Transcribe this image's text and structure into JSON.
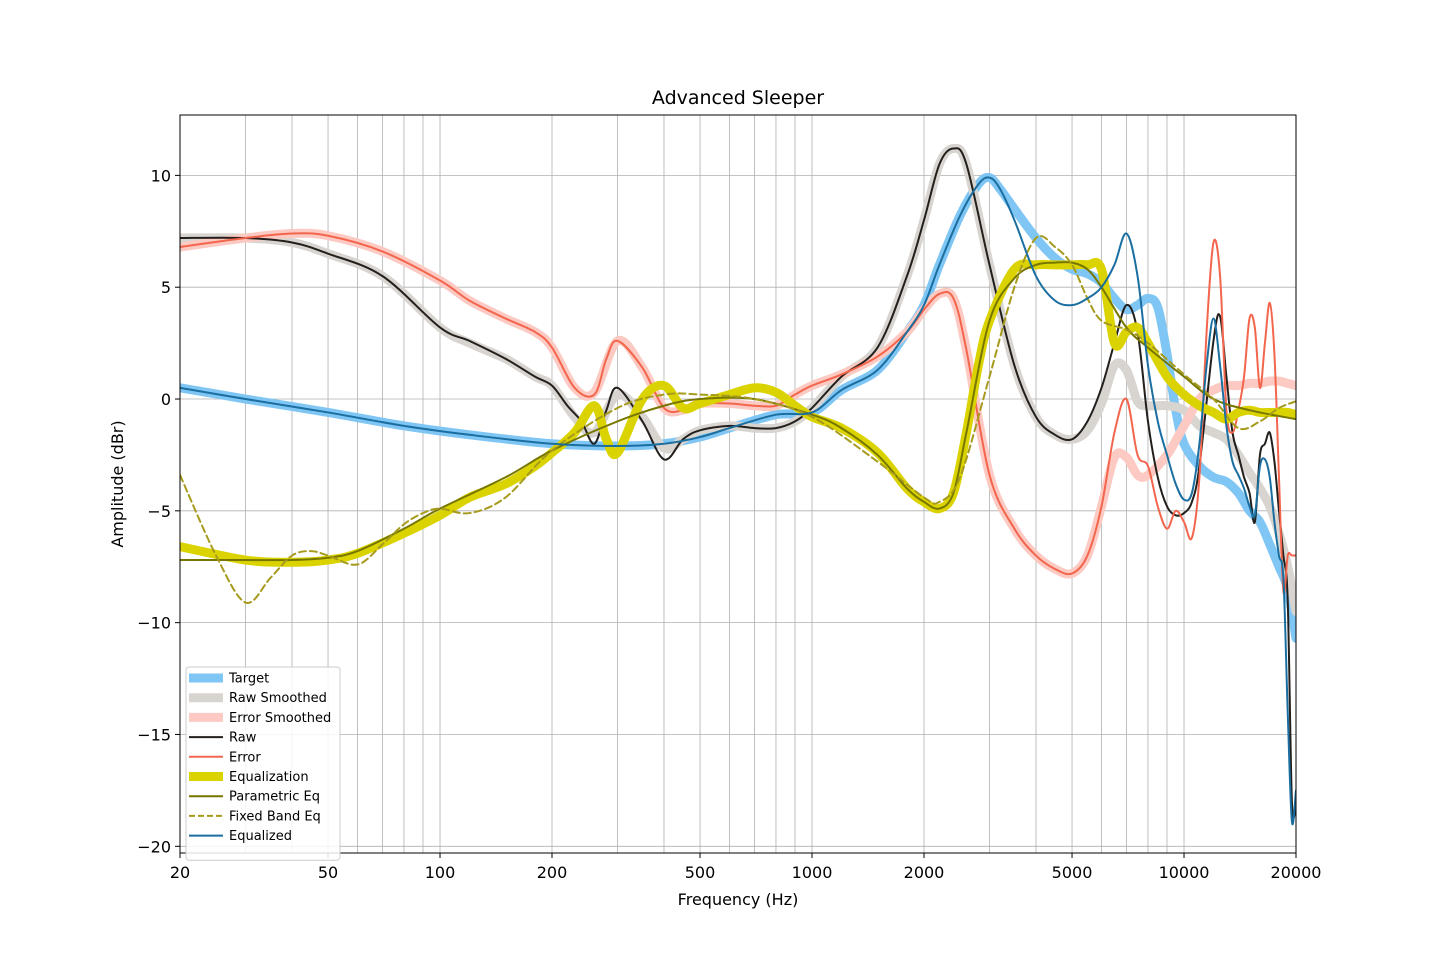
{
  "chart_data": {
    "type": "line",
    "title": "Advanced Sleeper",
    "xlabel": "Frequency (Hz)",
    "ylabel": "Amplitude (dBr)",
    "xscale": "log",
    "xlim": [
      20,
      20000
    ],
    "ylim": [
      -20.3,
      12.7
    ],
    "xticks": [
      20,
      50,
      100,
      200,
      500,
      1000,
      2000,
      5000,
      10000,
      20000
    ],
    "xtick_labels": [
      "20",
      "50",
      "100",
      "200",
      "500",
      "1000",
      "2000",
      "5000",
      "10000",
      "20000"
    ],
    "yticks": [
      10,
      5,
      0,
      -5,
      -10,
      -15,
      -20
    ],
    "ytick_labels": [
      "10",
      "5",
      "0",
      "−5",
      "−10",
      "−15",
      "−20"
    ],
    "grid": true,
    "legend_position": "lower-left",
    "series": [
      {
        "name": "Target",
        "color": "#7fc6f5",
        "style": "thick",
        "x": [
          20,
          30,
          50,
          80,
          120,
          200,
          300,
          400,
          500,
          600,
          800,
          1000,
          1200,
          1500,
          1800,
          2000,
          2200,
          2500,
          2800,
          3000,
          3200,
          3500,
          4000,
          4500,
          5000,
          5500,
          6000,
          6500,
          7000,
          7500,
          8000,
          8500,
          9000,
          9500,
          10000,
          11000,
          12000,
          13000,
          14000,
          15000,
          16000,
          17000,
          18000,
          19000,
          20000
        ],
        "y": [
          0.5,
          0,
          -0.6,
          -1.2,
          -1.6,
          -2.0,
          -2.1,
          -2.0,
          -1.7,
          -1.3,
          -0.7,
          -0.6,
          0.4,
          1.3,
          3.0,
          4.2,
          6.0,
          8.2,
          9.6,
          9.9,
          9.4,
          8.5,
          7.2,
          6.3,
          5.8,
          5.6,
          5.2,
          4.5,
          4.0,
          4.2,
          4.5,
          4.1,
          2.0,
          -0.5,
          -2.0,
          -3.0,
          -3.5,
          -3.7,
          -4.2,
          -5.0,
          -5.5,
          -6.5,
          -7.5,
          -8.5,
          -10.7
        ]
      },
      {
        "name": "Raw Smoothed",
        "color": "#d8d4d0",
        "style": "thick",
        "x": [
          20,
          30,
          40,
          50,
          70,
          100,
          120,
          150,
          180,
          200,
          230,
          260,
          300,
          350,
          400,
          450,
          500,
          600,
          700,
          800,
          900,
          1000,
          1200,
          1500,
          1800,
          2000,
          2200,
          2400,
          2600,
          3000,
          3500,
          4000,
          4500,
          5000,
          5500,
          6000,
          6500,
          7000,
          7500,
          8000,
          9000,
          10000,
          11000,
          12000,
          13000,
          14000,
          15000,
          16000,
          17000,
          18000,
          19000,
          20000
        ],
        "y": [
          7.2,
          7.2,
          7.0,
          6.5,
          5.5,
          3.2,
          2.5,
          1.8,
          1.0,
          0.6,
          -0.8,
          -1.5,
          0.2,
          -0.8,
          -2.2,
          -1.8,
          -1.4,
          -1.2,
          -1.3,
          -1.3,
          -1.0,
          -0.4,
          1.0,
          2.3,
          5.5,
          8.0,
          10.5,
          11.2,
          10.5,
          6.0,
          1.5,
          -0.8,
          -1.6,
          -1.8,
          -1.4,
          -0.2,
          1.5,
          1.3,
          -0.1,
          -0.3,
          -0.3,
          -0.5,
          -1.2,
          -1.5,
          -1.8,
          -2.5,
          -3.3,
          -4.0,
          -4.8,
          -6.0,
          -7.5,
          -9.5
        ]
      },
      {
        "name": "Error Smoothed",
        "color": "#fccac2",
        "style": "thick",
        "x": [
          20,
          30,
          40,
          50,
          70,
          100,
          120,
          150,
          180,
          200,
          230,
          260,
          300,
          350,
          400,
          450,
          500,
          600,
          700,
          800,
          900,
          1000,
          1200,
          1500,
          1800,
          2000,
          2200,
          2400,
          2600,
          3000,
          3500,
          4000,
          4500,
          5000,
          5500,
          6000,
          6500,
          7000,
          7500,
          8000,
          9000,
          10000,
          11000,
          12000,
          13000,
          14000,
          15000,
          16000,
          17000,
          18000,
          19000,
          20000
        ],
        "y": [
          6.8,
          7.2,
          7.4,
          7.3,
          6.6,
          5.3,
          4.4,
          3.6,
          3.0,
          2.3,
          0.5,
          0.3,
          2.6,
          1.4,
          -0.4,
          -0.5,
          -0.2,
          -0.2,
          -0.3,
          -0.3,
          0.2,
          0.6,
          1.1,
          1.9,
          3.0,
          4.0,
          4.7,
          4.5,
          2.2,
          -3.4,
          -5.8,
          -7.0,
          -7.6,
          -7.8,
          -7.0,
          -4.8,
          -2.6,
          -2.6,
          -3.4,
          -3.4,
          -2.5,
          -1.2,
          0.0,
          0.4,
          0.6,
          0.6,
          0.7,
          0.7,
          0.8,
          0.8,
          0.7,
          0.6
        ]
      },
      {
        "name": "Raw",
        "color": "#231f1c",
        "style": "line",
        "x": [
          20,
          30,
          40,
          50,
          70,
          100,
          120,
          150,
          180,
          200,
          220,
          240,
          260,
          280,
          300,
          350,
          400,
          450,
          500,
          600,
          700,
          800,
          900,
          1000,
          1200,
          1500,
          1800,
          2000,
          2200,
          2400,
          2600,
          3000,
          3500,
          4000,
          4500,
          5000,
          5500,
          6000,
          6500,
          7000,
          7500,
          8000,
          8500,
          9000,
          9500,
          10000,
          10500,
          11000,
          12000,
          12500,
          13000,
          13500,
          14000,
          14500,
          15000,
          15500,
          16000,
          16500,
          17000,
          17500,
          18000,
          18500,
          19000,
          19500,
          20000
        ],
        "y": [
          7.2,
          7.2,
          7.0,
          6.5,
          5.5,
          3.2,
          2.6,
          1.8,
          1.0,
          0.6,
          -0.3,
          -1.0,
          -2.0,
          -0.5,
          0.5,
          -1.0,
          -2.7,
          -1.8,
          -1.4,
          -1.2,
          -1.3,
          -1.3,
          -1.0,
          -0.4,
          1.0,
          2.3,
          5.5,
          8.0,
          10.5,
          11.2,
          10.5,
          6.0,
          1.5,
          -0.8,
          -1.6,
          -1.8,
          -1.0,
          0.5,
          2.5,
          4.2,
          3.0,
          -1.0,
          -3.5,
          -4.8,
          -5.2,
          -5.1,
          -4.6,
          -3.0,
          2.6,
          3.7,
          1.0,
          -1.5,
          -2.5,
          -3.5,
          -4.2,
          -5.5,
          -2.5,
          -2.0,
          -1.5,
          -2.8,
          -5.0,
          -7.0,
          -9.0,
          -18.0,
          -18.2
        ]
      },
      {
        "name": "Error",
        "color": "#f3664d",
        "style": "line",
        "x": [
          20,
          30,
          40,
          50,
          70,
          100,
          120,
          150,
          180,
          200,
          230,
          260,
          280,
          300,
          350,
          400,
          450,
          500,
          600,
          700,
          800,
          900,
          1000,
          1200,
          1500,
          1800,
          2000,
          2200,
          2400,
          2600,
          3000,
          3500,
          4000,
          4500,
          5000,
          5500,
          6000,
          6500,
          7000,
          7500,
          8000,
          8500,
          9000,
          9500,
          10000,
          10500,
          11000,
          11500,
          12000,
          12500,
          13000,
          13500,
          14000,
          14500,
          15000,
          15500,
          16000,
          16500,
          17000,
          17500,
          18000,
          18500,
          19000,
          19500,
          20000
        ],
        "y": [
          6.8,
          7.2,
          7.4,
          7.3,
          6.6,
          5.3,
          4.4,
          3.6,
          3.0,
          2.3,
          0.5,
          0.2,
          1.8,
          2.6,
          1.4,
          -0.4,
          -0.5,
          -0.2,
          -0.2,
          -0.3,
          -0.3,
          0.2,
          0.6,
          1.1,
          1.9,
          3.0,
          4.0,
          4.7,
          4.5,
          2.2,
          -3.4,
          -5.8,
          -7.0,
          -7.6,
          -7.8,
          -7.0,
          -4.8,
          -1.5,
          0.0,
          -2.5,
          -3.0,
          -4.8,
          -5.8,
          -5.0,
          -5.5,
          -6.2,
          -3.5,
          3.0,
          7.0,
          5.5,
          -0.5,
          -1.5,
          -0.5,
          1.0,
          3.6,
          3.2,
          0.5,
          2.5,
          4.3,
          2.0,
          -3.5,
          -8.6,
          -7.0,
          -7.0,
          -7.0
        ]
      },
      {
        "name": "Equalization",
        "color": "#dbd300",
        "style": "thick",
        "x": [
          20,
          30,
          40,
          50,
          60,
          80,
          100,
          120,
          150,
          180,
          200,
          230,
          260,
          280,
          300,
          350,
          400,
          450,
          500,
          600,
          700,
          800,
          900,
          1000,
          1200,
          1500,
          1800,
          2000,
          2200,
          2400,
          2600,
          2800,
          3000,
          3500,
          4000,
          4500,
          5000,
          5500,
          6000,
          6500,
          7000,
          7500,
          8000,
          9000,
          10000,
          11000,
          12000,
          13000,
          14000,
          15000,
          16000,
          17000,
          18000,
          19000,
          20000
        ],
        "y": [
          -6.6,
          -7.2,
          -7.3,
          -7.2,
          -6.9,
          -6.0,
          -5.2,
          -4.4,
          -3.8,
          -3.0,
          -2.4,
          -1.5,
          -0.3,
          -1.8,
          -2.4,
          0.0,
          0.6,
          -0.4,
          -0.2,
          0.2,
          0.5,
          0.3,
          -0.3,
          -0.8,
          -1.3,
          -2.4,
          -4.0,
          -4.6,
          -4.9,
          -4.2,
          -1.5,
          1.5,
          3.5,
          5.8,
          6.0,
          6.0,
          6.0,
          6.0,
          5.8,
          2.5,
          3.0,
          3.2,
          2.5,
          1.0,
          0.2,
          -0.3,
          -0.6,
          -0.9,
          -0.6,
          -0.5,
          -0.6,
          -0.6,
          -0.6,
          -0.6,
          -0.7
        ]
      },
      {
        "name": "Parametric Eq",
        "color": "#777700",
        "style": "line",
        "x": [
          20,
          30,
          40,
          50,
          60,
          80,
          100,
          150,
          200,
          300,
          400,
          500,
          700,
          1000,
          1200,
          1500,
          1800,
          2000,
          2200,
          2400,
          2600,
          3000,
          3500,
          4000,
          4500,
          5000,
          5500,
          6000,
          7000,
          8000,
          10000,
          12000,
          15000,
          20000
        ],
        "y": [
          -7.2,
          -7.2,
          -7.2,
          -7.1,
          -6.8,
          -5.8,
          -4.9,
          -3.5,
          -2.3,
          -1.0,
          -0.3,
          0.0,
          0.0,
          -0.7,
          -1.3,
          -2.5,
          -4.0,
          -4.6,
          -4.9,
          -4.2,
          -1.5,
          3.5,
          5.4,
          6.0,
          6.1,
          6.1,
          5.8,
          5.0,
          3.2,
          2.3,
          1.0,
          0.0,
          -0.5,
          -0.9
        ]
      },
      {
        "name": "Fixed Band Eq",
        "color": "#a69b1c",
        "style": "dashed",
        "x": [
          20,
          25,
          30,
          35,
          40,
          45,
          50,
          60,
          70,
          80,
          90,
          100,
          120,
          150,
          200,
          300,
          400,
          500,
          700,
          1000,
          1500,
          2000,
          2200,
          2500,
          3000,
          3500,
          4000,
          4500,
          5000,
          5500,
          6000,
          7000,
          8000,
          10000,
          12000,
          14000,
          16000,
          18000,
          20000
        ],
        "y": [
          -3.4,
          -7.0,
          -9.1,
          -8.0,
          -7.0,
          -6.8,
          -7.0,
          -7.4,
          -6.5,
          -5.6,
          -5.1,
          -4.9,
          -5.1,
          -4.4,
          -2.3,
          -0.4,
          0.2,
          0.2,
          0.0,
          -0.8,
          -2.8,
          -4.4,
          -4.6,
          -3.5,
          1.0,
          5.0,
          7.2,
          6.8,
          6.0,
          4.5,
          3.5,
          3.1,
          2.5,
          1.1,
          0.0,
          -1.3,
          -1.0,
          -0.4,
          -0.1
        ]
      },
      {
        "name": "Equalized",
        "color": "#1a6ea0",
        "style": "line",
        "x": [
          20,
          30,
          50,
          80,
          120,
          200,
          300,
          400,
          500,
          600,
          800,
          1000,
          1200,
          1500,
          1800,
          2000,
          2200,
          2500,
          2800,
          3000,
          3200,
          3500,
          4000,
          4500,
          5000,
          5500,
          6000,
          6500,
          7000,
          7500,
          8000,
          8500,
          9000,
          9500,
          10000,
          10500,
          11000,
          11500,
          12000,
          12500,
          13000,
          13500,
          14000,
          14500,
          15000,
          15500,
          16000,
          16500,
          17000,
          17500,
          18000,
          18500,
          19000,
          19500,
          20000
        ],
        "y": [
          0.5,
          0.0,
          -0.6,
          -1.2,
          -1.6,
          -2.0,
          -2.1,
          -2.0,
          -1.7,
          -1.3,
          -0.7,
          -0.6,
          0.4,
          1.3,
          3.0,
          4.2,
          6.0,
          8.2,
          9.6,
          9.9,
          9.4,
          8.0,
          5.5,
          4.4,
          4.2,
          4.5,
          5.0,
          6.0,
          7.4,
          5.5,
          1.5,
          -1.0,
          -2.5,
          -3.8,
          -4.5,
          -4.2,
          -2.0,
          1.5,
          3.6,
          1.5,
          -1.2,
          -2.8,
          -3.4,
          -4.0,
          -4.8,
          -5.2,
          -3.0,
          -2.7,
          -3.5,
          -5.5,
          -7.0,
          -8.0,
          -14.0,
          -18.9,
          -17.5
        ]
      }
    ]
  }
}
